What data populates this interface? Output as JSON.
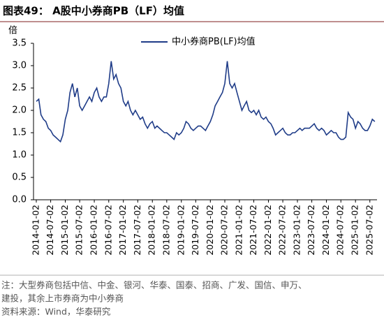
{
  "chart_data": {
    "type": "line",
    "title": "图表49： A股中小券商PB（LF）均值",
    "y_unit": "倍",
    "notes": [
      "注：大型券商包括中信、中金、银河、华泰、国泰、招商、广发、国信、申万、",
      "建投，其余上市券商为中小券商"
    ],
    "source": "资料来源：Wind，华泰研究",
    "x": [
      "2014-01-02",
      "2014-02-02",
      "2014-03-02",
      "2014-04-02",
      "2014-05-02",
      "2014-06-02",
      "2014-07-02",
      "2014-08-02",
      "2014-09-02",
      "2014-10-02",
      "2014-11-02",
      "2014-12-02",
      "2015-01-02",
      "2015-02-02",
      "2015-03-02",
      "2015-04-02",
      "2015-05-02",
      "2015-06-02",
      "2015-07-02",
      "2015-08-02",
      "2015-09-02",
      "2015-10-02",
      "2015-11-02",
      "2015-12-02",
      "2016-01-02",
      "2016-02-02",
      "2016-03-02",
      "2016-04-02",
      "2016-05-02",
      "2016-06-02",
      "2016-07-02",
      "2016-08-02",
      "2016-09-02",
      "2016-10-02",
      "2016-11-02",
      "2016-12-02",
      "2017-01-02",
      "2017-02-02",
      "2017-03-02",
      "2017-04-02",
      "2017-05-02",
      "2017-06-02",
      "2017-07-02",
      "2017-08-02",
      "2017-09-02",
      "2017-10-02",
      "2017-11-02",
      "2017-12-02",
      "2018-01-02",
      "2018-02-02",
      "2018-03-02",
      "2018-04-02",
      "2018-05-02",
      "2018-06-02",
      "2018-07-02",
      "2018-08-02",
      "2018-09-02",
      "2018-10-02",
      "2018-11-02",
      "2018-12-02",
      "2019-01-02",
      "2019-02-02",
      "2019-03-02",
      "2019-04-02",
      "2019-05-02",
      "2019-06-02",
      "2019-07-02",
      "2019-08-02",
      "2019-09-02",
      "2019-10-02",
      "2019-11-02",
      "2019-12-02",
      "2020-01-02",
      "2020-02-02",
      "2020-03-02",
      "2020-04-02",
      "2020-05-02",
      "2020-06-02",
      "2020-07-02",
      "2020-08-02",
      "2020-09-02",
      "2020-10-02",
      "2020-11-02",
      "2020-12-02",
      "2021-01-02",
      "2021-02-02",
      "2021-03-02",
      "2021-04-02",
      "2021-05-02",
      "2021-06-02",
      "2021-07-02",
      "2021-08-02",
      "2021-09-02",
      "2021-10-02",
      "2021-11-02",
      "2021-12-02",
      "2022-01-02",
      "2022-02-02",
      "2022-03-02",
      "2022-04-02",
      "2022-05-02",
      "2022-06-02",
      "2022-07-02",
      "2022-08-02",
      "2022-09-02",
      "2022-10-02",
      "2022-11-02",
      "2022-12-02",
      "2023-01-02",
      "2023-02-02",
      "2023-03-02",
      "2023-04-02",
      "2023-05-02",
      "2023-06-02",
      "2023-07-02",
      "2023-08-02",
      "2023-09-02",
      "2023-10-02",
      "2023-11-02",
      "2023-12-02",
      "2024-01-02",
      "2024-02-02",
      "2024-03-02",
      "2024-04-02",
      "2024-05-02",
      "2024-06-02",
      "2024-07-02",
      "2024-08-02",
      "2024-09-02",
      "2024-10-02",
      "2024-11-02",
      "2024-12-02",
      "2025-01-02",
      "2025-02-02",
      "2025-03-02",
      "2025-04-02",
      "2025-05-02",
      "2025-06-02",
      "2025-07-02",
      "2025-08-02",
      "2025-09-02"
    ],
    "series": [
      {
        "name": "中小券商PB(LF)均值",
        "color": "#1f3c88",
        "values": [
          2.2,
          2.25,
          1.9,
          1.8,
          1.75,
          1.6,
          1.55,
          1.45,
          1.4,
          1.35,
          1.3,
          1.45,
          1.8,
          2.0,
          2.4,
          2.6,
          2.3,
          2.5,
          2.1,
          2.0,
          2.1,
          2.2,
          2.3,
          2.2,
          2.4,
          2.5,
          2.3,
          2.2,
          2.3,
          2.3,
          2.6,
          3.1,
          2.7,
          2.8,
          2.6,
          2.5,
          2.2,
          2.1,
          2.2,
          2.0,
          1.9,
          2.0,
          1.9,
          1.8,
          1.85,
          1.7,
          1.6,
          1.7,
          1.75,
          1.6,
          1.65,
          1.6,
          1.55,
          1.5,
          1.5,
          1.45,
          1.4,
          1.35,
          1.5,
          1.45,
          1.5,
          1.6,
          1.75,
          1.7,
          1.6,
          1.55,
          1.6,
          1.65,
          1.65,
          1.6,
          1.55,
          1.65,
          1.75,
          1.9,
          2.1,
          2.2,
          2.3,
          2.4,
          2.6,
          3.1,
          2.6,
          2.5,
          2.6,
          2.4,
          2.2,
          2.0,
          2.1,
          2.2,
          2.0,
          1.95,
          2.0,
          1.9,
          2.0,
          1.85,
          1.8,
          1.85,
          1.75,
          1.7,
          1.6,
          1.45,
          1.5,
          1.55,
          1.6,
          1.5,
          1.45,
          1.45,
          1.5,
          1.5,
          1.55,
          1.6,
          1.55,
          1.6,
          1.6,
          1.6,
          1.65,
          1.7,
          1.6,
          1.55,
          1.6,
          1.55,
          1.45,
          1.5,
          1.55,
          1.5,
          1.5,
          1.4,
          1.35,
          1.35,
          1.4,
          1.95,
          1.85,
          1.8,
          1.6,
          1.75,
          1.7,
          1.6,
          1.55,
          1.55,
          1.65,
          1.8,
          1.75
        ]
      }
    ],
    "xlim": [
      "2014-01-02",
      "2025-09-30"
    ],
    "xticks": [
      "2014-01-02",
      "2014-07-02",
      "2015-01-02",
      "2015-07-02",
      "2016-01-02",
      "2016-07-02",
      "2017-01-02",
      "2017-07-02",
      "2018-01-02",
      "2018-07-02",
      "2019-01-02",
      "2019-07-02",
      "2020-01-02",
      "2020-07-02",
      "2021-01-02",
      "2021-07-02",
      "2022-01-02",
      "2022-07-02",
      "2023-01-02",
      "2023-07-02",
      "2024-01-02",
      "2024-07-02",
      "2025-01-02",
      "2025-07-02"
    ],
    "ylim": [
      0,
      3.5
    ],
    "yticks": [
      {
        "value": 0,
        "label": "0.0"
      },
      {
        "value": 0.5,
        "label": "0.5"
      },
      {
        "value": 1,
        "label": "1.0"
      },
      {
        "value": 1.5,
        "label": "1.5"
      },
      {
        "value": 2,
        "label": "2.0"
      },
      {
        "value": 2.5,
        "label": "2.5"
      },
      {
        "value": 3,
        "label": "3.0"
      },
      {
        "value": 3.5,
        "label": "3.5"
      }
    ],
    "grid": false,
    "legend": "top"
  }
}
